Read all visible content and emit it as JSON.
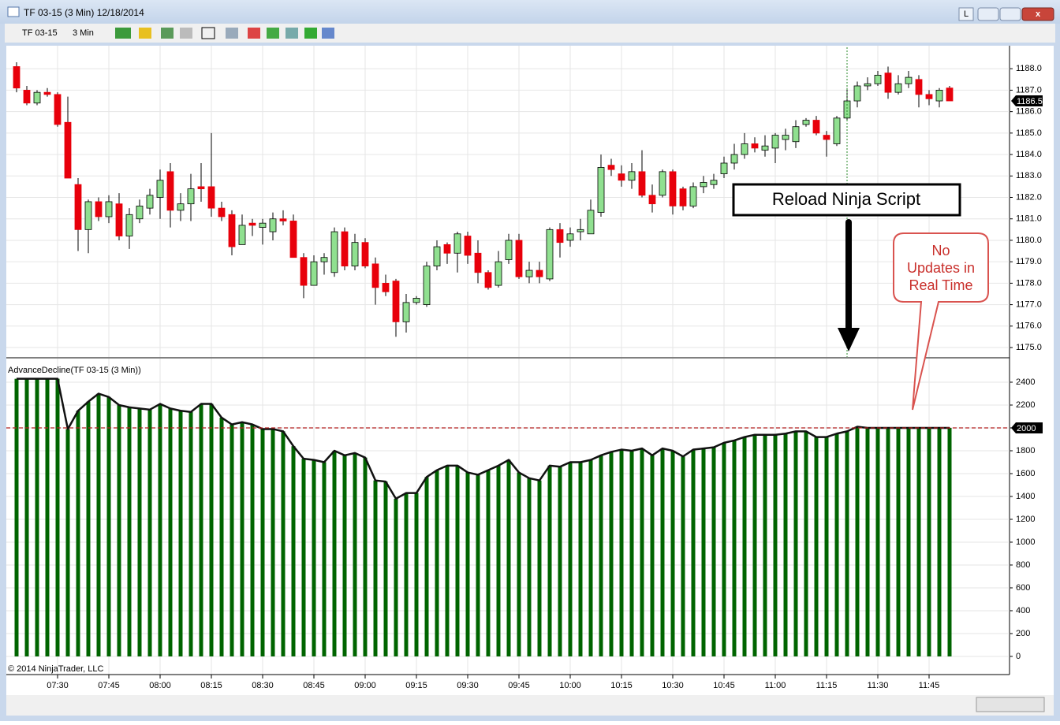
{
  "window": {
    "title": "TF 03-15 (3 Min)  12/18/2014",
    "button": "L"
  },
  "toolbar": {
    "instrument": "TF 03-15",
    "interval": "3 Min"
  },
  "chart_data": [
    {
      "type": "candlestick",
      "categories": [
        null,
        null,
        null,
        null,
        "07:30",
        null,
        null,
        null,
        null,
        "07:45",
        null,
        null,
        null,
        null,
        "08:00",
        null,
        null,
        null,
        null,
        "08:15",
        null,
        null,
        null,
        null,
        "08:30",
        null,
        null,
        null,
        null,
        "08:45",
        null,
        null,
        null,
        null,
        "09:00",
        null,
        null,
        null,
        null,
        "09:15",
        null,
        null,
        null,
        null,
        "09:30",
        null,
        null,
        null,
        null,
        "09:45",
        null,
        null,
        null,
        null,
        "10:00",
        null,
        null,
        null,
        null,
        "10:15",
        null,
        null,
        null,
        null,
        "10:30",
        null,
        null,
        null,
        null,
        "10:45",
        null,
        null,
        null,
        null,
        "11:00",
        null,
        null,
        null,
        null,
        "11:15",
        null,
        null,
        null,
        null,
        "11:30",
        null,
        null,
        null,
        null,
        "11:45",
        null,
        null
      ],
      "open": [
        1188.1,
        1187.0,
        1186.4,
        1186.9,
        1186.8,
        1185.5,
        1182.6,
        1180.5,
        1181.8,
        1181.1,
        1181.7,
        1180.2,
        1181.0,
        1181.5,
        1182.0,
        1183.2,
        1181.4,
        1181.7,
        1182.5,
        1182.5,
        1181.5,
        1181.2,
        1179.8,
        1180.8,
        1180.6,
        1180.4,
        1181.0,
        1180.9,
        1179.2,
        1177.9,
        1179.0,
        1178.5,
        1180.4,
        1178.8,
        1179.9,
        1178.9,
        1178.0,
        1178.1,
        1176.2,
        1177.1,
        1177.0,
        1178.8,
        1179.8,
        1179.4,
        1180.2,
        1179.4,
        1178.5,
        1177.9,
        1179.1,
        1180.0,
        1178.3,
        1178.6,
        1178.2,
        1180.5,
        1180.0,
        1180.4,
        1180.3,
        1181.3,
        1183.5,
        1183.1,
        1182.8,
        1183.2,
        1182.1,
        1182.1,
        1183.2,
        1182.4,
        1181.6,
        1182.5,
        1182.6,
        1183.1,
        1183.6,
        1184.0,
        1184.5,
        1184.2,
        1184.3,
        1184.7,
        1184.6,
        1185.4,
        1185.6,
        1184.9,
        1184.5,
        1185.7,
        1186.5,
        1187.2,
        1187.3,
        1187.8,
        1186.9,
        1187.3,
        1187.5,
        1186.8,
        1186.5,
        1187.1
      ],
      "high": [
        1188.3,
        1187.2,
        1187.0,
        1187.1,
        1186.9,
        1186.7,
        1182.9,
        1181.9,
        1182.0,
        1182.1,
        1182.2,
        1181.5,
        1181.9,
        1182.4,
        1183.3,
        1183.6,
        1182.2,
        1183.1,
        1183.6,
        1185.0,
        1181.8,
        1181.4,
        1181.2,
        1181.0,
        1181.0,
        1181.3,
        1181.4,
        1181.2,
        1179.4,
        1179.3,
        1179.4,
        1180.6,
        1180.6,
        1180.3,
        1180.1,
        1179.2,
        1178.4,
        1178.2,
        1177.5,
        1177.4,
        1179.0,
        1180.0,
        1179.9,
        1180.4,
        1180.4,
        1180.0,
        1178.6,
        1179.5,
        1180.3,
        1180.3,
        1179.0,
        1179.0,
        1180.6,
        1180.8,
        1180.6,
        1181.0,
        1181.9,
        1184.0,
        1183.8,
        1183.5,
        1183.6,
        1184.2,
        1182.6,
        1183.3,
        1183.3,
        1182.5,
        1182.7,
        1183.0,
        1183.1,
        1183.9,
        1184.5,
        1185.0,
        1184.8,
        1184.9,
        1185.0,
        1185.2,
        1185.6,
        1185.7,
        1185.8,
        1185.1,
        1185.8,
        1187.1,
        1187.4,
        1187.6,
        1187.9,
        1188.1,
        1187.7,
        1187.9,
        1187.7,
        1187.0,
        1187.1,
        1187.2
      ],
      "low": [
        1186.9,
        1186.3,
        1186.3,
        1186.7,
        1185.3,
        1182.9,
        1179.5,
        1179.4,
        1180.9,
        1180.8,
        1180.0,
        1179.6,
        1180.8,
        1181.2,
        1181.0,
        1180.6,
        1180.9,
        1180.9,
        1181.8,
        1181.1,
        1180.9,
        1179.3,
        1179.8,
        1180.2,
        1179.8,
        1180.0,
        1180.7,
        1179.2,
        1177.3,
        1177.9,
        1178.4,
        1178.3,
        1178.6,
        1178.6,
        1178.7,
        1177.0,
        1177.4,
        1175.5,
        1175.7,
        1177.0,
        1176.9,
        1178.6,
        1178.9,
        1178.5,
        1178.9,
        1178.0,
        1177.7,
        1177.8,
        1178.9,
        1178.2,
        1178.0,
        1178.0,
        1178.1,
        1179.2,
        1179.7,
        1180.0,
        1180.3,
        1181.1,
        1183.0,
        1182.5,
        1182.4,
        1182.0,
        1181.3,
        1182.0,
        1181.2,
        1181.4,
        1181.5,
        1182.2,
        1182.4,
        1182.9,
        1183.3,
        1183.8,
        1184.1,
        1183.9,
        1183.6,
        1184.2,
        1184.3,
        1185.3,
        1184.9,
        1183.9,
        1184.4,
        1185.6,
        1186.2,
        1187.0,
        1187.2,
        1186.6,
        1186.8,
        1187.1,
        1186.2,
        1186.3,
        1186.2,
        1186.5
      ],
      "close": [
        1187.1,
        1186.4,
        1186.9,
        1186.8,
        1185.4,
        1182.9,
        1180.5,
        1181.8,
        1181.1,
        1181.8,
        1180.2,
        1181.2,
        1181.6,
        1182.1,
        1182.8,
        1181.4,
        1181.7,
        1182.4,
        1182.4,
        1181.5,
        1181.1,
        1179.7,
        1180.7,
        1180.7,
        1180.8,
        1181.0,
        1180.9,
        1179.2,
        1177.9,
        1179.0,
        1179.2,
        1180.4,
        1178.8,
        1179.9,
        1178.8,
        1177.8,
        1177.6,
        1176.2,
        1177.1,
        1177.3,
        1178.8,
        1179.7,
        1179.4,
        1180.3,
        1179.3,
        1178.5,
        1177.8,
        1179.0,
        1180.0,
        1178.3,
        1178.6,
        1178.3,
        1180.5,
        1179.9,
        1180.3,
        1180.5,
        1181.4,
        1183.4,
        1183.3,
        1182.8,
        1183.2,
        1182.1,
        1181.7,
        1183.2,
        1181.6,
        1181.6,
        1182.5,
        1182.7,
        1182.8,
        1183.6,
        1184.0,
        1184.5,
        1184.3,
        1184.4,
        1184.9,
        1184.9,
        1185.3,
        1185.6,
        1185.0,
        1184.7,
        1185.7,
        1186.5,
        1187.2,
        1187.3,
        1187.7,
        1186.9,
        1187.3,
        1187.6,
        1186.8,
        1186.6,
        1187.0,
        1186.5
      ],
      "up_color": "#90e090",
      "down_color": "#e8000b",
      "ylim": [
        1174.56,
        1189.0
      ],
      "yticks": [
        {
          "value": 1175,
          "label": "1175.0"
        },
        {
          "value": 1176,
          "label": "1176.0"
        },
        {
          "value": 1177,
          "label": "1177.0"
        },
        {
          "value": 1178,
          "label": "1178.0"
        },
        {
          "value": 1179,
          "label": "1179.0"
        },
        {
          "value": 1180,
          "label": "1180.0"
        },
        {
          "value": 1181,
          "label": "1181.0"
        },
        {
          "value": 1182,
          "label": "1182.0"
        },
        {
          "value": 1183,
          "label": "1183.0"
        },
        {
          "value": 1184,
          "label": "1184.0"
        },
        {
          "value": 1185,
          "label": "1185.0"
        },
        {
          "value": 1186,
          "label": "1186.0"
        },
        {
          "value": 1187,
          "label": "1187.0"
        },
        {
          "value": 1188,
          "label": "1188.0"
        }
      ],
      "last_price": 1186.5,
      "grid": true
    },
    {
      "type": "bar",
      "title": "AdvanceDecline(TF 03-15 (3 Min))",
      "values": [
        2430,
        2430,
        2430,
        2430,
        2430,
        1990,
        2150,
        2230,
        2300,
        2270,
        2200,
        2180,
        2170,
        2160,
        2210,
        2170,
        2150,
        2140,
        2210,
        2210,
        2090,
        2030,
        2050,
        2030,
        1990,
        1990,
        1970,
        1840,
        1730,
        1720,
        1700,
        1800,
        1760,
        1780,
        1740,
        1540,
        1530,
        1380,
        1430,
        1430,
        1570,
        1630,
        1670,
        1670,
        1610,
        1590,
        1630,
        1670,
        1720,
        1610,
        1560,
        1540,
        1670,
        1660,
        1700,
        1700,
        1720,
        1760,
        1790,
        1810,
        1800,
        1820,
        1760,
        1820,
        1800,
        1750,
        1810,
        1820,
        1830,
        1870,
        1890,
        1920,
        1940,
        1940,
        1940,
        1950,
        1970,
        1970,
        1920,
        1920,
        1950,
        1970,
        2010,
        2000,
        2000,
        2000,
        2000,
        2000,
        2000,
        2000,
        2000,
        2000
      ],
      "color": "#006400",
      "line_color": "#111111",
      "ylim": [
        -152,
        2607
      ],
      "yticks": [
        0,
        200,
        400,
        600,
        800,
        1000,
        1200,
        1400,
        1600,
        1800,
        2000,
        2200,
        2400
      ],
      "reference_line": 2000,
      "reference_color": "#b22222",
      "grid": true
    }
  ],
  "annotations": {
    "box": "Reload Ninja Script",
    "callout": [
      "No",
      "Updates in",
      "Real Time"
    ]
  },
  "copyright": "© 2014 NinjaTrader, LLC"
}
